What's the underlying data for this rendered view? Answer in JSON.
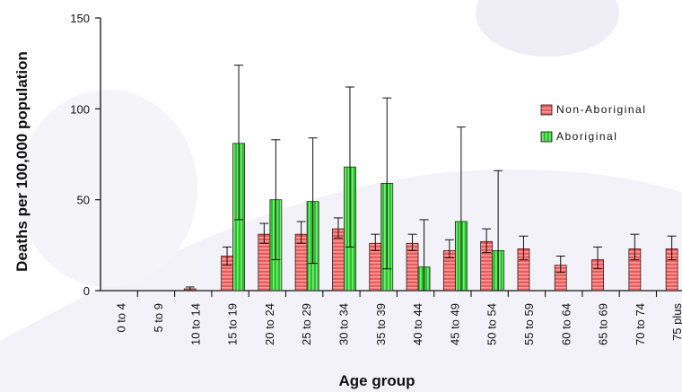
{
  "chart_data": {
    "type": "bar",
    "title": "",
    "xlabel": "Age group",
    "ylabel": "Deaths per 100,000 population",
    "ylim": [
      0,
      150
    ],
    "yticks": [
      0,
      50,
      100,
      150
    ],
    "grid": false,
    "legend_position": "right",
    "error_bars": true,
    "categories": [
      "0 to 4",
      "5 to 9",
      "10 to 14",
      "15 to 19",
      "20 to 24",
      "25 to 29",
      "30 to 34",
      "35 to 39",
      "40 to 44",
      "45 to 49",
      "50 to 54",
      "55 to 59",
      "60 to 64",
      "65 to 69",
      "70 to 74",
      "75 plus"
    ],
    "series": [
      {
        "name": "Non-Aboriginal",
        "color": "#e84a4a",
        "values": [
          0,
          0,
          1,
          19,
          31,
          31,
          34,
          26,
          26,
          22,
          27,
          23,
          14,
          17,
          23,
          23
        ],
        "error_low": [
          0,
          0,
          0,
          14,
          26,
          26,
          29,
          22,
          22,
          18,
          21,
          17,
          10,
          12,
          17,
          17
        ],
        "error_high": [
          0,
          0,
          2,
          24,
          37,
          38,
          40,
          31,
          31,
          28,
          34,
          30,
          19,
          24,
          31,
          30
        ]
      },
      {
        "name": "Aboriginal",
        "color": "#2ecc2e",
        "values": [
          0,
          0,
          0,
          81,
          50,
          49,
          68,
          59,
          13,
          38,
          22,
          null,
          null,
          null,
          null,
          null
        ],
        "error_low": [
          0,
          0,
          0,
          39,
          17,
          15,
          24,
          12,
          0,
          0,
          0,
          null,
          null,
          null,
          null,
          null
        ],
        "error_high": [
          0,
          0,
          0,
          124,
          83,
          84,
          112,
          106,
          39,
          90,
          66,
          null,
          null,
          null,
          null,
          null
        ]
      }
    ]
  }
}
